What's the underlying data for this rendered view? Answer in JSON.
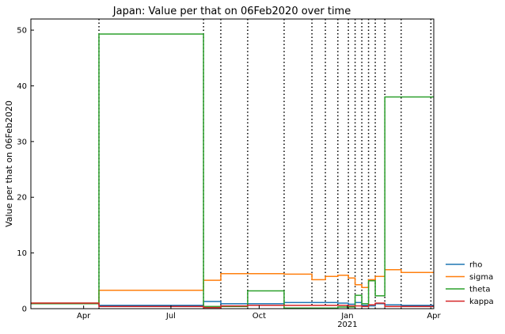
{
  "chart_data": {
    "type": "line",
    "title": "Japan: Value per that on 06Feb2020 over time",
    "xlabel": "",
    "ylabel": "Value per that on 06Feb2020",
    "xlim": [
      "2020-02-06",
      "2021-04-01"
    ],
    "ylim": [
      0,
      52
    ],
    "grid": false,
    "legend_position": "lower-right-outside",
    "x_ticks": [
      {
        "date": "2020-04-01",
        "label": "Apr",
        "sublabel": ""
      },
      {
        "date": "2020-07-01",
        "label": "Jul",
        "sublabel": ""
      },
      {
        "date": "2020-10-01",
        "label": "Oct",
        "sublabel": ""
      },
      {
        "date": "2021-01-01",
        "label": "Jan",
        "sublabel": "2021"
      },
      {
        "date": "2021-04-01",
        "label": "Apr",
        "sublabel": ""
      }
    ],
    "y_ticks": [
      0,
      10,
      20,
      30,
      40,
      50
    ],
    "change_points": [
      "2020-04-17",
      "2020-08-04",
      "2020-08-22",
      "2020-09-19",
      "2020-10-27",
      "2020-11-25",
      "2020-12-09",
      "2020-12-22",
      "2021-01-02",
      "2021-01-09",
      "2021-01-16",
      "2021-01-23",
      "2021-01-30",
      "2021-02-09",
      "2021-02-26",
      "2021-03-29"
    ],
    "series": [
      {
        "name": "rho",
        "color": "#1f77b4",
        "breaks": [
          "2020-02-06",
          "2020-04-17",
          "2020-08-04",
          "2020-08-22",
          "2020-09-19",
          "2020-10-27",
          "2020-11-25",
          "2020-12-09",
          "2020-12-22",
          "2021-01-02",
          "2021-01-09",
          "2021-01-16",
          "2021-01-23",
          "2021-01-30",
          "2021-02-09",
          "2021-02-26",
          "2021-03-29",
          "2021-04-01"
        ],
        "values": [
          1.0,
          0.6,
          1.3,
          0.9,
          0.9,
          1.1,
          1.1,
          1.1,
          1.0,
          0.8,
          1.1,
          0.6,
          0.5,
          0.9,
          0.7,
          0.6,
          0.6
        ]
      },
      {
        "name": "sigma",
        "color": "#ff7f0e",
        "breaks": [
          "2020-02-06",
          "2020-04-17",
          "2020-08-04",
          "2020-08-22",
          "2020-09-19",
          "2020-10-27",
          "2020-11-25",
          "2020-12-09",
          "2020-12-22",
          "2021-01-02",
          "2021-01-09",
          "2021-01-16",
          "2021-01-23",
          "2021-01-30",
          "2021-02-09",
          "2021-02-26",
          "2021-03-29",
          "2021-04-01"
        ],
        "values": [
          1.0,
          3.3,
          5.1,
          6.3,
          6.3,
          6.2,
          5.2,
          5.8,
          6.0,
          5.5,
          4.3,
          3.8,
          5.2,
          5.8,
          7.0,
          6.5,
          6.5
        ]
      },
      {
        "name": "theta",
        "color": "#2ca02c",
        "breaks": [
          "2020-02-06",
          "2020-04-17",
          "2020-08-04",
          "2020-08-22",
          "2020-09-19",
          "2020-10-27",
          "2020-11-25",
          "2020-12-09",
          "2020-12-22",
          "2021-01-02",
          "2021-01-09",
          "2021-01-16",
          "2021-01-23",
          "2021-01-30",
          "2021-02-09",
          "2021-02-26",
          "2021-03-29",
          "2021-04-01"
        ],
        "values": [
          0.9,
          49.3,
          0.4,
          0.4,
          3.2,
          0.1,
          0.1,
          0.1,
          0.3,
          0.3,
          2.4,
          0.9,
          5.0,
          2.3,
          38.0,
          38.0,
          38.0
        ]
      },
      {
        "name": "kappa",
        "color": "#d62728",
        "breaks": [
          "2020-02-06",
          "2020-04-17",
          "2020-08-04",
          "2020-08-22",
          "2020-09-19",
          "2020-10-27",
          "2020-11-25",
          "2020-12-09",
          "2020-12-22",
          "2021-01-02",
          "2021-01-09",
          "2021-01-16",
          "2021-01-23",
          "2021-01-30",
          "2021-02-09",
          "2021-02-26",
          "2021-03-29",
          "2021-04-01"
        ],
        "values": [
          1.0,
          0.4,
          0.2,
          0.5,
          0.6,
          0.6,
          0.6,
          0.6,
          0.6,
          0.5,
          0.5,
          0.4,
          0.7,
          1.0,
          0.4,
          0.4,
          0.4
        ]
      }
    ]
  }
}
